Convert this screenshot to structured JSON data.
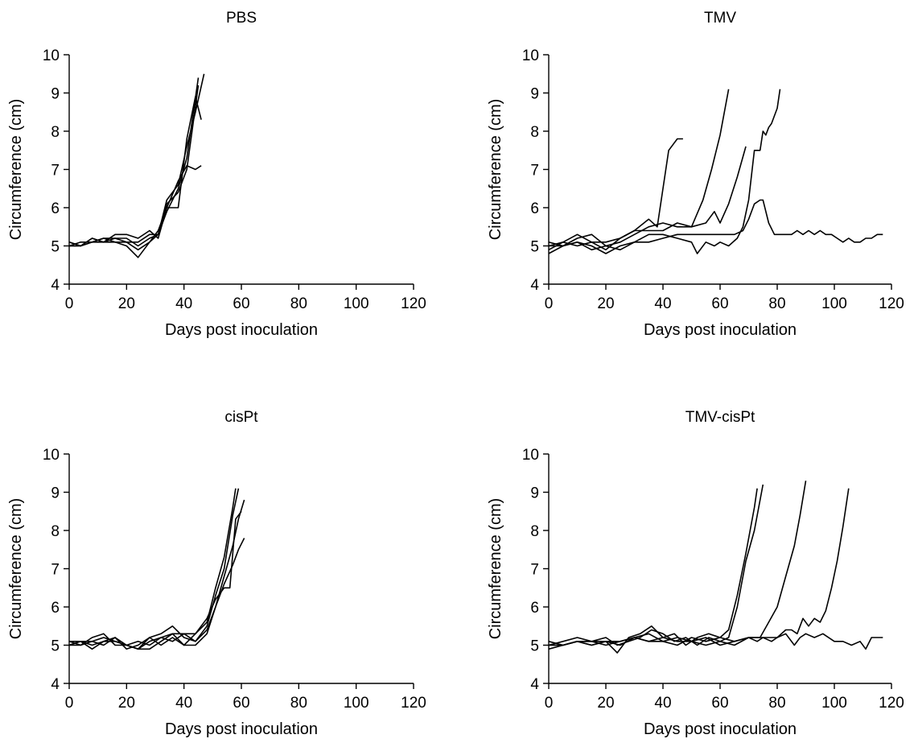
{
  "chart_data": [
    {
      "type": "line",
      "title": "PBS",
      "xlabel": "Days post inoculation",
      "ylabel": "Circumference (cm)",
      "xlim": [
        0,
        120
      ],
      "ylim": [
        4,
        10
      ],
      "xticks": [
        "0",
        "20",
        "40",
        "60",
        "80",
        "100",
        "120"
      ],
      "yticks": [
        "4",
        "5",
        "6",
        "7",
        "8",
        "9",
        "10"
      ],
      "grid": false,
      "series": [
        {
          "x": [
            0,
            4,
            8,
            12,
            16,
            20,
            24,
            28,
            31,
            34,
            38,
            41,
            44,
            46
          ],
          "y": [
            5.1,
            5.0,
            5.2,
            5.1,
            5.1,
            5.0,
            4.7,
            5.1,
            5.4,
            6.0,
            6.7,
            7.1,
            7.0,
            7.1
          ]
        },
        {
          "x": [
            0,
            4,
            8,
            12,
            16,
            20,
            24,
            28,
            31,
            34,
            38,
            41,
            44,
            47
          ],
          "y": [
            5.0,
            5.0,
            5.1,
            5.2,
            5.1,
            5.1,
            5.1,
            5.3,
            5.3,
            6.2,
            6.6,
            7.6,
            8.5,
            9.5
          ]
        },
        {
          "x": [
            0,
            4,
            8,
            12,
            16,
            20,
            24,
            28,
            31,
            34,
            38,
            41,
            44,
            46
          ],
          "y": [
            5.0,
            5.1,
            5.1,
            5.1,
            5.3,
            5.3,
            5.2,
            5.4,
            5.2,
            6.0,
            6.0,
            7.8,
            8.9,
            8.3
          ]
        },
        {
          "x": [
            0,
            4,
            8,
            12,
            16,
            20,
            24,
            28,
            31,
            34,
            38,
            41,
            45
          ],
          "y": [
            5.0,
            5.0,
            5.2,
            5.1,
            5.2,
            5.2,
            5.0,
            5.2,
            5.3,
            5.9,
            6.5,
            7.3,
            9.4
          ]
        },
        {
          "x": [
            0,
            4,
            8,
            12,
            16,
            20,
            24,
            28,
            31,
            34,
            38,
            41,
            45
          ],
          "y": [
            5.1,
            5.0,
            5.1,
            5.2,
            5.2,
            5.1,
            4.9,
            5.1,
            5.3,
            6.1,
            6.4,
            7.0,
            9.2
          ]
        }
      ]
    },
    {
      "type": "line",
      "title": "TMV",
      "xlabel": "Days post inoculation",
      "ylabel": "Circumference (cm)",
      "xlim": [
        0,
        120
      ],
      "ylim": [
        4,
        10
      ],
      "xticks": [
        "0",
        "20",
        "40",
        "60",
        "80",
        "100",
        "120"
      ],
      "yticks": [
        "4",
        "5",
        "6",
        "7",
        "8",
        "9",
        "10"
      ],
      "grid": false,
      "series": [
        {
          "x": [
            0,
            5,
            10,
            15,
            20,
            25,
            30,
            35,
            38,
            42,
            45,
            47
          ],
          "y": [
            5.0,
            5.1,
            5.3,
            5.1,
            5.1,
            5.2,
            5.4,
            5.7,
            5.5,
            7.5,
            7.8,
            7.8
          ]
        },
        {
          "x": [
            0,
            5,
            10,
            15,
            20,
            25,
            30,
            35,
            40,
            45,
            50,
            54,
            57,
            60,
            63
          ],
          "y": [
            5.1,
            5.0,
            5.2,
            5.3,
            5.0,
            5.1,
            5.3,
            5.5,
            5.6,
            5.5,
            5.5,
            6.2,
            7.0,
            7.9,
            9.1
          ]
        },
        {
          "x": [
            0,
            5,
            10,
            15,
            20,
            25,
            30,
            35,
            40,
            45,
            50,
            55,
            58,
            60,
            63,
            66,
            69
          ],
          "y": [
            4.9,
            5.1,
            5.0,
            5.1,
            4.9,
            5.2,
            5.4,
            5.4,
            5.4,
            5.6,
            5.5,
            5.6,
            5.9,
            5.6,
            6.1,
            6.8,
            7.6
          ]
        },
        {
          "x": [
            0,
            5,
            10,
            15,
            20,
            25,
            30,
            35,
            40,
            45,
            50,
            52,
            55,
            58,
            60,
            63,
            66,
            68,
            70,
            72,
            74,
            75,
            76,
            77,
            78,
            80,
            81
          ],
          "y": [
            4.8,
            5.0,
            5.1,
            4.9,
            5.0,
            4.9,
            5.1,
            5.3,
            5.3,
            5.2,
            5.1,
            4.8,
            5.1,
            5.0,
            5.1,
            5.0,
            5.2,
            5.5,
            6.2,
            7.5,
            7.5,
            8.0,
            7.9,
            8.1,
            8.2,
            8.6,
            9.1
          ]
        },
        {
          "x": [
            0,
            5,
            10,
            15,
            20,
            25,
            30,
            35,
            40,
            45,
            50,
            55,
            60,
            65,
            68,
            70,
            72,
            74,
            75,
            77,
            79,
            82,
            85,
            87,
            89,
            91,
            93,
            95,
            97,
            99,
            101,
            103,
            105,
            107,
            109,
            111,
            113,
            115,
            117
          ],
          "y": [
            5.0,
            5.0,
            5.1,
            5.0,
            4.8,
            5.0,
            5.1,
            5.1,
            5.2,
            5.3,
            5.3,
            5.3,
            5.3,
            5.3,
            5.4,
            5.7,
            6.1,
            6.2,
            6.2,
            5.6,
            5.3,
            5.3,
            5.3,
            5.4,
            5.3,
            5.4,
            5.3,
            5.4,
            5.3,
            5.3,
            5.2,
            5.1,
            5.2,
            5.1,
            5.1,
            5.2,
            5.2,
            5.3,
            5.3
          ]
        }
      ]
    },
    {
      "type": "line",
      "title": "cisPt",
      "xlabel": "Days post inoculation",
      "ylabel": "Circumference (cm)",
      "xlim": [
        0,
        120
      ],
      "ylim": [
        4,
        10
      ],
      "xticks": [
        "0",
        "20",
        "40",
        "60",
        "80",
        "100",
        "120"
      ],
      "yticks": [
        "4",
        "5",
        "6",
        "7",
        "8",
        "9",
        "10"
      ],
      "grid": false,
      "series": [
        {
          "x": [
            0,
            4,
            8,
            12,
            16,
            20,
            24,
            28,
            32,
            36,
            40,
            44,
            48,
            51,
            54,
            57,
            58
          ],
          "y": [
            5.1,
            5.0,
            5.1,
            5.2,
            5.1,
            5.0,
            4.9,
            5.1,
            5.2,
            5.3,
            5.3,
            5.3,
            5.6,
            6.5,
            7.3,
            8.6,
            9.1
          ]
        },
        {
          "x": [
            0,
            4,
            8,
            12,
            16,
            20,
            24,
            28,
            32,
            36,
            40,
            44,
            48,
            51,
            54,
            57,
            59
          ],
          "y": [
            5.0,
            5.1,
            5.0,
            5.1,
            5.2,
            4.9,
            5.0,
            5.2,
            5.3,
            5.5,
            5.2,
            5.1,
            5.5,
            6.3,
            7.0,
            8.4,
            9.1
          ]
        },
        {
          "x": [
            0,
            4,
            8,
            12,
            16,
            20,
            24,
            28,
            32,
            36,
            40,
            44,
            48,
            51,
            54,
            57,
            59,
            61
          ],
          "y": [
            5.0,
            5.0,
            5.2,
            5.3,
            5.0,
            5.0,
            5.1,
            5.0,
            5.2,
            5.1,
            5.3,
            5.1,
            5.4,
            6.0,
            6.8,
            7.6,
            8.3,
            8.8
          ]
        },
        {
          "x": [
            0,
            4,
            8,
            12,
            16,
            20,
            24,
            28,
            32,
            36,
            40,
            44,
            48,
            51,
            54,
            56,
            58,
            60
          ],
          "y": [
            5.1,
            5.1,
            4.9,
            5.1,
            5.1,
            5.0,
            4.9,
            5.2,
            5.0,
            5.2,
            5.0,
            5.3,
            5.7,
            6.2,
            6.5,
            6.5,
            8.3,
            8.5
          ]
        },
        {
          "x": [
            0,
            4,
            8,
            12,
            16,
            20,
            24,
            28,
            32,
            36,
            40,
            44,
            48,
            51,
            54,
            57,
            59,
            61
          ],
          "y": [
            5.0,
            5.1,
            5.1,
            5.0,
            5.2,
            5.0,
            4.9,
            4.9,
            5.1,
            5.3,
            5.0,
            5.0,
            5.3,
            6.0,
            6.6,
            7.1,
            7.5,
            7.8
          ]
        }
      ]
    },
    {
      "type": "line",
      "title": "TMV-cisPt",
      "xlabel": "Days post inoculation",
      "ylabel": "Circumference (cm)",
      "xlim": [
        0,
        120
      ],
      "ylim": [
        4,
        10
      ],
      "xticks": [
        "0",
        "20",
        "40",
        "60",
        "80",
        "100",
        "120"
      ],
      "yticks": [
        "4",
        "5",
        "6",
        "7",
        "8",
        "9",
        "10"
      ],
      "grid": false,
      "series": [
        {
          "x": [
            0,
            5,
            10,
            15,
            20,
            24,
            28,
            32,
            36,
            40,
            44,
            48,
            52,
            56,
            60,
            63,
            66,
            69,
            72,
            73
          ],
          "y": [
            5.0,
            5.1,
            5.2,
            5.1,
            5.1,
            4.8,
            5.2,
            5.3,
            5.5,
            5.2,
            5.3,
            5.0,
            5.2,
            5.3,
            5.2,
            5.4,
            6.3,
            7.4,
            8.6,
            9.1
          ]
        },
        {
          "x": [
            0,
            5,
            10,
            15,
            20,
            24,
            28,
            32,
            36,
            40,
            44,
            48,
            52,
            56,
            60,
            63,
            66,
            69,
            72,
            75
          ],
          "y": [
            5.0,
            5.0,
            5.1,
            5.1,
            5.2,
            5.0,
            5.1,
            5.2,
            5.4,
            5.3,
            5.1,
            5.2,
            5.0,
            5.2,
            5.1,
            5.2,
            6.0,
            7.2,
            8.0,
            9.2
          ]
        },
        {
          "x": [
            0,
            5,
            10,
            15,
            20,
            25,
            30,
            35,
            40,
            45,
            50,
            55,
            60,
            65,
            70,
            74,
            77,
            80,
            83,
            86,
            88,
            90
          ],
          "y": [
            4.9,
            5.0,
            5.1,
            5.0,
            5.1,
            5.0,
            5.2,
            5.1,
            5.1,
            5.2,
            5.1,
            5.0,
            5.1,
            5.0,
            5.2,
            5.2,
            5.6,
            6.0,
            6.8,
            7.6,
            8.4,
            9.3
          ]
        },
        {
          "x": [
            0,
            5,
            10,
            15,
            20,
            25,
            30,
            35,
            40,
            45,
            50,
            55,
            60,
            65,
            70,
            75,
            80,
            83,
            85,
            87,
            89,
            91,
            93,
            95,
            97,
            99,
            101,
            103,
            105
          ],
          "y": [
            5.1,
            5.0,
            5.1,
            5.1,
            5.0,
            5.1,
            5.2,
            5.3,
            5.1,
            5.0,
            5.2,
            5.1,
            5.2,
            5.1,
            5.2,
            5.2,
            5.2,
            5.4,
            5.4,
            5.3,
            5.7,
            5.5,
            5.7,
            5.6,
            5.9,
            6.5,
            7.2,
            8.1,
            9.1
          ]
        },
        {
          "x": [
            0,
            5,
            10,
            15,
            20,
            25,
            30,
            35,
            40,
            45,
            50,
            55,
            60,
            65,
            70,
            73,
            75,
            78,
            80,
            83,
            86,
            88,
            90,
            93,
            96,
            100,
            103,
            106,
            109,
            111,
            113,
            117
          ],
          "y": [
            5.0,
            5.0,
            5.1,
            5.0,
            5.1,
            5.1,
            5.2,
            5.1,
            5.2,
            5.1,
            5.1,
            5.2,
            5.0,
            5.1,
            5.2,
            5.1,
            5.2,
            5.1,
            5.2,
            5.3,
            5.0,
            5.2,
            5.3,
            5.2,
            5.3,
            5.1,
            5.1,
            5.0,
            5.1,
            4.9,
            5.2,
            5.2
          ]
        }
      ]
    }
  ]
}
